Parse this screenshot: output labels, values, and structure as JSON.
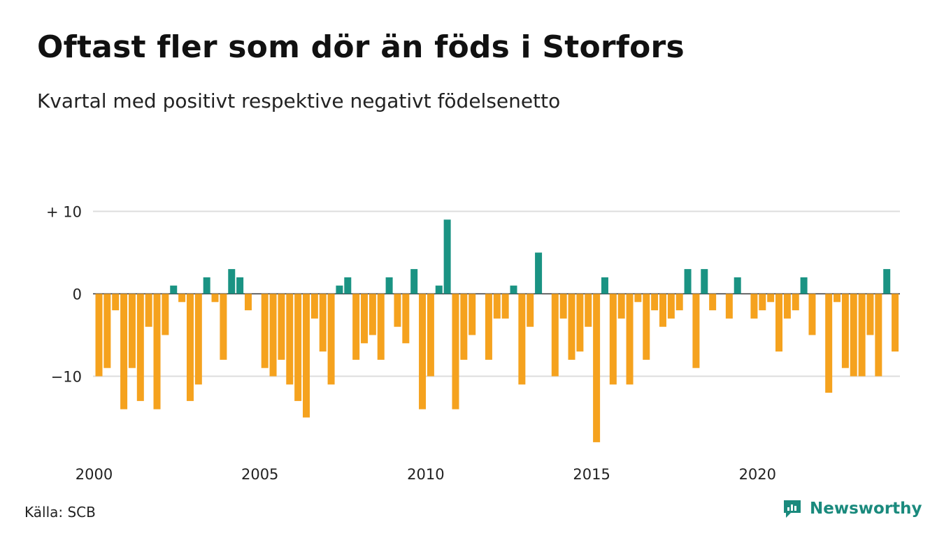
{
  "title": "Oftast fler som dör än föds i Storfors",
  "subtitle": "Kvartal med positivt respektive negativt födelsenetto",
  "source": "Källa: SCB",
  "brand": {
    "name": "Newsworthy",
    "icon": "newsworthy-logo-icon",
    "color": "#1a8a7d"
  },
  "colors": {
    "positive": "#1a9383",
    "negative": "#f5a21e",
    "grid": "#dddddd",
    "zero_line": "#333333"
  },
  "chart_data": {
    "type": "bar",
    "title": "Oftast fler som dör än föds i Storfors",
    "subtitle": "Kvartal med positivt respektive negativt födelsenetto",
    "ylim": [
      -18,
      10
    ],
    "yticks": [
      {
        "value": 10,
        "label": "+ 10"
      },
      {
        "value": 0,
        "label": "0"
      },
      {
        "value": -10,
        "label": "−10"
      }
    ],
    "x_start_year": 2000,
    "xticks": [
      "2000",
      "2005",
      "2010",
      "2015",
      "2020"
    ],
    "grid": true,
    "values": [
      -10,
      -9,
      -2,
      -14,
      -9,
      -13,
      -4,
      -14,
      -5,
      1,
      -1,
      -13,
      -11,
      2,
      -1,
      -8,
      3,
      2,
      -2,
      0,
      -9,
      -10,
      -8,
      -11,
      -13,
      -15,
      -3,
      -7,
      -11,
      1,
      2,
      -8,
      -6,
      -5,
      -8,
      2,
      -4,
      -6,
      3,
      -14,
      -10,
      1,
      9,
      -14,
      -8,
      -5,
      0,
      -8,
      -3,
      -3,
      1,
      -11,
      -4,
      5,
      0,
      -10,
      -3,
      -8,
      -7,
      -4,
      -18,
      2,
      -11,
      -3,
      -11,
      -1,
      -8,
      -2,
      -4,
      -3,
      -2,
      3,
      -9,
      3,
      -2,
      0,
      -3,
      2,
      0,
      -3,
      -2,
      -1,
      -7,
      -3,
      -2,
      2,
      -5,
      0,
      -12,
      -1,
      -9,
      -10,
      -10,
      -5,
      -10,
      3,
      -7
    ]
  }
}
